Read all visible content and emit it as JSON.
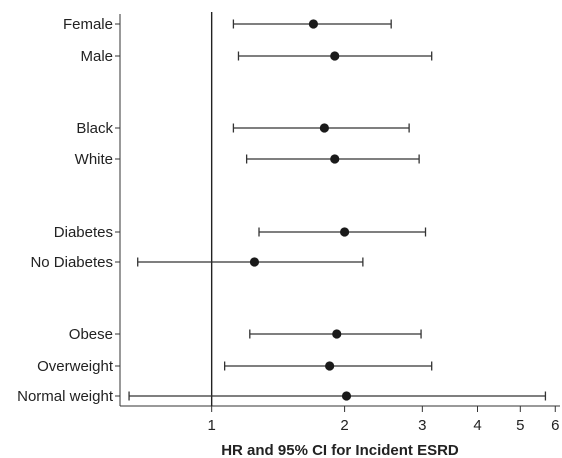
{
  "chart_data": {
    "type": "forest",
    "xlabel": "HR and 95% CI for Incident ESRD",
    "x_scale": "log",
    "xlim": [
      0.62,
      6.15
    ],
    "x_ticks": [
      1,
      2,
      3,
      4,
      5,
      6
    ],
    "x_tick_labels": [
      "1",
      "2",
      "3",
      "4",
      "5",
      "6"
    ],
    "reference_line": 1,
    "rows": [
      {
        "label": "Female",
        "hr": 1.7,
        "lower": 1.12,
        "upper": 2.55
      },
      {
        "label": "Male",
        "hr": 1.9,
        "lower": 1.15,
        "upper": 3.15
      },
      {
        "label": "Black",
        "hr": 1.8,
        "lower": 1.12,
        "upper": 2.8
      },
      {
        "label": "White",
        "hr": 1.9,
        "lower": 1.2,
        "upper": 2.95
      },
      {
        "label": "Diabetes",
        "hr": 2.0,
        "lower": 1.28,
        "upper": 3.05
      },
      {
        "label": "No Diabetes",
        "hr": 1.25,
        "lower": 0.68,
        "upper": 2.2
      },
      {
        "label": "Obese",
        "hr": 1.92,
        "lower": 1.22,
        "upper": 2.98
      },
      {
        "label": "Overweight",
        "hr": 1.85,
        "lower": 1.07,
        "upper": 3.15
      },
      {
        "label": "Normal weight",
        "hr": 2.02,
        "lower": 0.65,
        "upper": 5.7
      }
    ],
    "grid": false,
    "legend": "none"
  }
}
